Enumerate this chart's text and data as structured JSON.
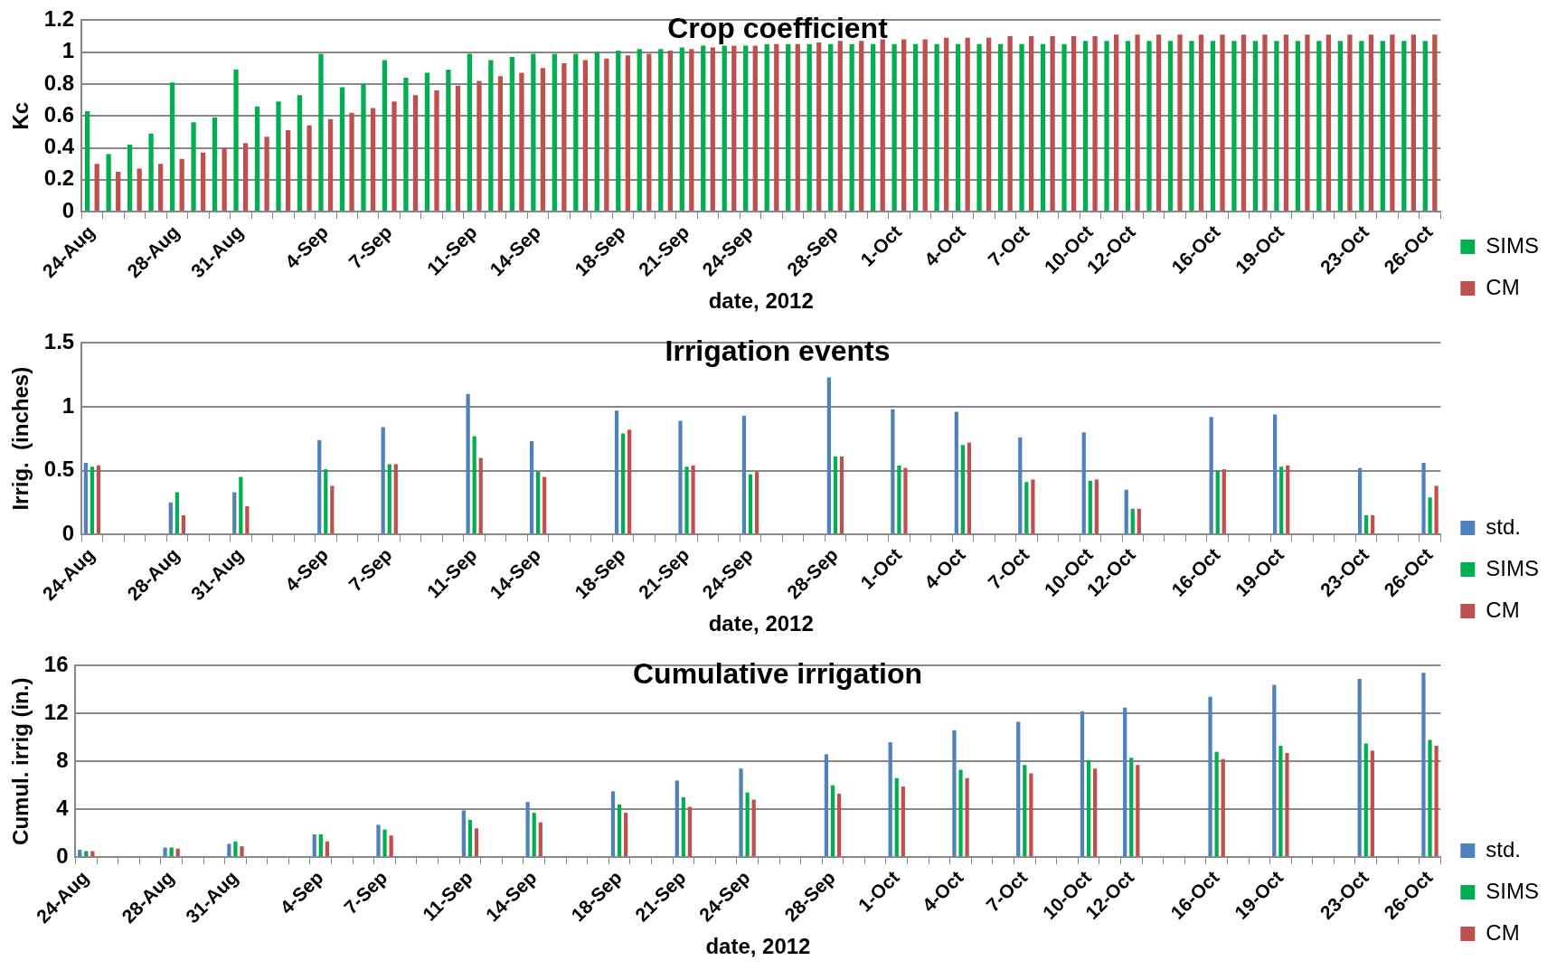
{
  "chart_data": [
    {
      "type": "bar",
      "title": "Crop coefficient",
      "xlabel": "date, 2012",
      "ylabel": "Kc",
      "ylim": [
        0,
        1.2
      ],
      "yticks": [
        0,
        0.2,
        0.4,
        0.6,
        0.8,
        1,
        1.2
      ],
      "grid": "y",
      "legend": "right",
      "categories": [
        "24-Aug",
        null,
        null,
        null,
        "28-Aug",
        null,
        null,
        "31-Aug",
        null,
        null,
        null,
        "4-Sep",
        null,
        null,
        "7-Sep",
        null,
        null,
        null,
        "11-Sep",
        null,
        null,
        "14-Sep",
        null,
        null,
        null,
        "18-Sep",
        null,
        null,
        "21-Sep",
        null,
        null,
        "24-Sep",
        null,
        null,
        null,
        "28-Sep",
        null,
        null,
        "1-Oct",
        null,
        null,
        "4-Oct",
        null,
        null,
        "7-Oct",
        null,
        null,
        "10-Oct",
        null,
        "12-Oct",
        null,
        null,
        null,
        "16-Oct",
        null,
        null,
        "19-Oct",
        null,
        null,
        null,
        "23-Oct",
        null,
        null,
        "26-Oct"
      ],
      "series": [
        {
          "name": "SIMS",
          "color": "#00b050",
          "values": [
            0.63,
            0.36,
            0.42,
            0.49,
            0.81,
            0.56,
            0.59,
            0.89,
            0.66,
            0.69,
            0.73,
            0.99,
            0.78,
            0.8,
            0.95,
            0.84,
            0.87,
            0.89,
            0.99,
            0.95,
            0.97,
            0.99,
            0.99,
            0.99,
            1,
            1.01,
            1.02,
            1.02,
            1.03,
            1.04,
            1.04,
            1.04,
            1.05,
            1.05,
            1.05,
            1.05,
            1.05,
            1.05,
            1.05,
            1.05,
            1.05,
            1.05,
            1.05,
            1.05,
            1.05,
            1.05,
            1.05,
            1.07,
            1.07,
            1.07,
            1.07,
            1.07,
            1.07,
            1.07,
            1.07,
            1.07,
            1.07,
            1.07,
            1.07,
            1.07,
            1.07,
            1.07,
            1.07,
            1.07
          ]
        },
        {
          "name": "CM",
          "color": "#c0504d",
          "values": [
            0.3,
            0.25,
            0.27,
            0.3,
            0.33,
            0.37,
            0.4,
            0.43,
            0.47,
            0.51,
            0.54,
            0.58,
            0.62,
            0.65,
            0.69,
            0.73,
            0.76,
            0.79,
            0.82,
            0.85,
            0.87,
            0.9,
            0.93,
            0.95,
            0.96,
            0.98,
            0.99,
            1.01,
            1.02,
            1.03,
            1.04,
            1.04,
            1.05,
            1.05,
            1.06,
            1.07,
            1.07,
            1.08,
            1.08,
            1.08,
            1.09,
            1.09,
            1.09,
            1.1,
            1.1,
            1.1,
            1.1,
            1.1,
            1.11,
            1.11,
            1.11,
            1.11,
            1.11,
            1.11,
            1.11,
            1.11,
            1.11,
            1.11,
            1.11,
            1.11,
            1.11,
            1.11,
            1.11,
            1.11
          ]
        }
      ]
    },
    {
      "type": "bar",
      "title": "Irrigation events",
      "xlabel": "date, 2012",
      "ylabel": "Irrig.  (inches)",
      "ylim": [
        0,
        1.5
      ],
      "yticks": [
        0,
        0.5,
        1,
        1.5
      ],
      "grid": "y",
      "legend": "right",
      "categories": [
        "24-Aug",
        null,
        null,
        null,
        "28-Aug",
        null,
        null,
        "31-Aug",
        null,
        null,
        null,
        "4-Sep",
        null,
        null,
        "7-Sep",
        null,
        null,
        null,
        "11-Sep",
        null,
        null,
        "14-Sep",
        null,
        null,
        null,
        "18-Sep",
        null,
        null,
        "21-Sep",
        null,
        null,
        "24-Sep",
        null,
        null,
        null,
        "28-Sep",
        null,
        null,
        "1-Oct",
        null,
        null,
        "4-Oct",
        null,
        null,
        "7-Oct",
        null,
        null,
        "10-Oct",
        null,
        "12-Oct",
        null,
        null,
        null,
        "16-Oct",
        null,
        null,
        "19-Oct",
        null,
        null,
        null,
        "23-Oct",
        null,
        null,
        "26-Oct"
      ],
      "series": [
        {
          "name": "std.",
          "color": "#4f81bd",
          "values": [
            0.56,
            null,
            null,
            null,
            0.25,
            null,
            null,
            0.33,
            null,
            null,
            null,
            0.74,
            null,
            null,
            0.84,
            null,
            null,
            null,
            1.1,
            null,
            null,
            0.73,
            null,
            null,
            null,
            0.97,
            null,
            null,
            0.89,
            null,
            null,
            0.93,
            null,
            null,
            null,
            1.23,
            null,
            null,
            0.98,
            null,
            null,
            0.96,
            null,
            null,
            0.76,
            null,
            null,
            0.8,
            null,
            0.35,
            null,
            null,
            null,
            0.92,
            null,
            null,
            0.94,
            null,
            null,
            null,
            0.52,
            null,
            null,
            0.56
          ]
        },
        {
          "name": "SIMS",
          "color": "#00b050",
          "values": [
            0.53,
            null,
            null,
            null,
            0.33,
            null,
            null,
            0.45,
            null,
            null,
            null,
            0.51,
            null,
            null,
            0.55,
            null,
            null,
            null,
            0.77,
            null,
            null,
            0.49,
            null,
            null,
            null,
            0.79,
            null,
            null,
            0.53,
            null,
            null,
            0.47,
            null,
            null,
            null,
            0.61,
            null,
            null,
            0.54,
            null,
            null,
            0.7,
            null,
            null,
            0.41,
            null,
            null,
            0.42,
            null,
            0.2,
            null,
            null,
            null,
            0.5,
            null,
            null,
            0.53,
            null,
            null,
            null,
            0.15,
            null,
            null,
            0.29
          ]
        },
        {
          "name": "CM",
          "color": "#c0504d",
          "values": [
            0.54,
            null,
            null,
            null,
            0.15,
            null,
            null,
            0.22,
            null,
            null,
            null,
            0.38,
            null,
            null,
            0.55,
            null,
            null,
            null,
            0.6,
            null,
            null,
            0.45,
            null,
            null,
            null,
            0.82,
            null,
            null,
            0.54,
            null,
            null,
            0.49,
            null,
            null,
            null,
            0.61,
            null,
            null,
            0.52,
            null,
            null,
            0.72,
            null,
            null,
            0.43,
            null,
            null,
            0.43,
            null,
            0.2,
            null,
            null,
            null,
            0.51,
            null,
            null,
            0.54,
            null,
            null,
            null,
            0.15,
            null,
            null,
            0.38
          ]
        }
      ]
    },
    {
      "type": "bar",
      "title": "Cumulative irrigation",
      "xlabel": "date, 2012",
      "ylabel": "Cumul. irrig (in.)",
      "ylim": [
        0,
        16
      ],
      "yticks": [
        0,
        4,
        8,
        12,
        16
      ],
      "grid": "y",
      "legend": "right",
      "categories": [
        "24-Aug",
        null,
        null,
        null,
        "28-Aug",
        null,
        null,
        "31-Aug",
        null,
        null,
        null,
        "4-Sep",
        null,
        null,
        "7-Sep",
        null,
        null,
        null,
        "11-Sep",
        null,
        null,
        "14-Sep",
        null,
        null,
        null,
        "18-Sep",
        null,
        null,
        "21-Sep",
        null,
        null,
        "24-Sep",
        null,
        null,
        null,
        "28-Sep",
        null,
        null,
        "1-Oct",
        null,
        null,
        "4-Oct",
        null,
        null,
        "7-Oct",
        null,
        null,
        "10-Oct",
        null,
        "12-Oct",
        null,
        null,
        null,
        "16-Oct",
        null,
        null,
        "19-Oct",
        null,
        null,
        null,
        "23-Oct",
        null,
        null,
        "26-Oct"
      ],
      "series": [
        {
          "name": "std.",
          "color": "#4f81bd",
          "values": [
            0.6,
            null,
            null,
            null,
            0.8,
            null,
            null,
            1.1,
            null,
            null,
            null,
            1.9,
            null,
            null,
            2.7,
            null,
            null,
            null,
            3.9,
            null,
            null,
            4.6,
            null,
            null,
            null,
            5.5,
            null,
            null,
            6.4,
            null,
            null,
            7.4,
            null,
            null,
            null,
            8.6,
            null,
            null,
            9.6,
            null,
            null,
            10.6,
            null,
            null,
            11.3,
            null,
            null,
            12.2,
            null,
            12.5,
            null,
            null,
            null,
            13.4,
            null,
            null,
            14.4,
            null,
            null,
            null,
            14.9,
            null,
            null,
            15.4
          ]
        },
        {
          "name": "SIMS",
          "color": "#00b050",
          "values": [
            0.5,
            null,
            null,
            null,
            0.8,
            null,
            null,
            1.3,
            null,
            null,
            null,
            1.9,
            null,
            null,
            2.3,
            null,
            null,
            null,
            3.1,
            null,
            null,
            3.7,
            null,
            null,
            null,
            4.4,
            null,
            null,
            5,
            null,
            null,
            5.4,
            null,
            null,
            null,
            6,
            null,
            null,
            6.6,
            null,
            null,
            7.3,
            null,
            null,
            7.7,
            null,
            null,
            8.1,
            null,
            8.3,
            null,
            null,
            null,
            8.8,
            null,
            null,
            9.3,
            null,
            null,
            null,
            9.5,
            null,
            null,
            9.8
          ]
        },
        {
          "name": "CM",
          "color": "#c0504d",
          "values": [
            0.5,
            null,
            null,
            null,
            0.7,
            null,
            null,
            0.9,
            null,
            null,
            null,
            1.3,
            null,
            null,
            1.8,
            null,
            null,
            null,
            2.4,
            null,
            null,
            2.9,
            null,
            null,
            null,
            3.7,
            null,
            null,
            4.2,
            null,
            null,
            4.8,
            null,
            null,
            null,
            5.3,
            null,
            null,
            5.9,
            null,
            null,
            6.6,
            null,
            null,
            7,
            null,
            null,
            7.4,
            null,
            7.7,
            null,
            null,
            null,
            8.2,
            null,
            null,
            8.7,
            null,
            null,
            null,
            8.9,
            null,
            null,
            9.3
          ]
        }
      ]
    }
  ]
}
